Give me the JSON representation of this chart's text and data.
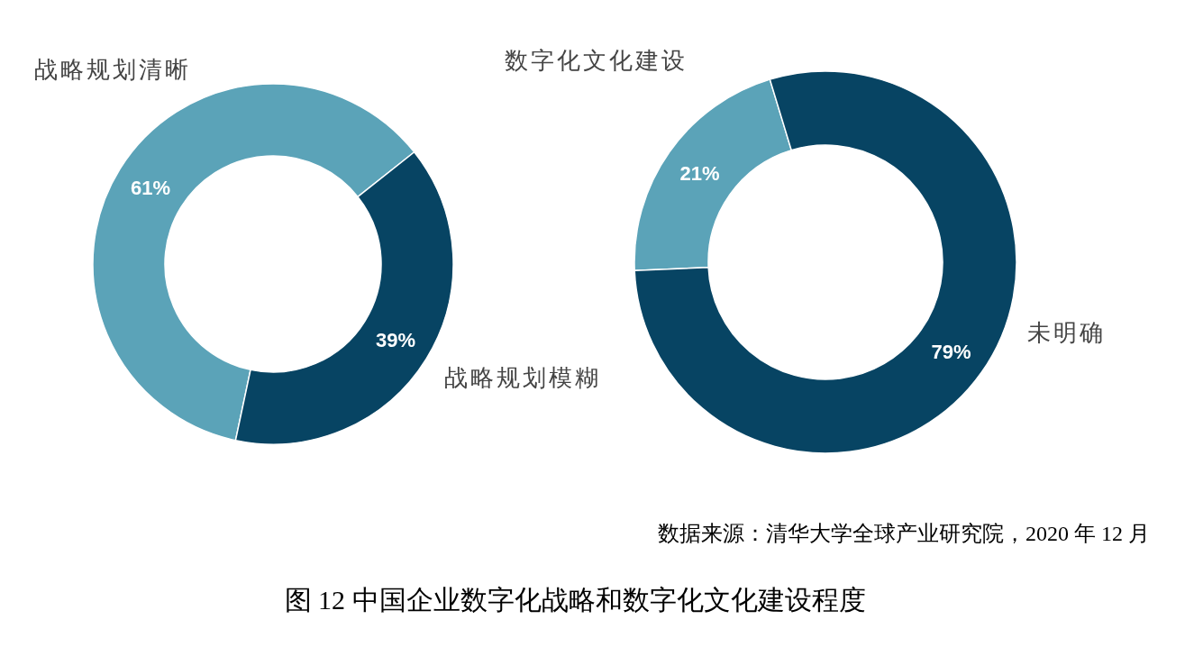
{
  "chart_data": [
    {
      "type": "donut",
      "categories": [
        "战略规划清晰",
        "战略规划模糊"
      ],
      "values": [
        61,
        39
      ],
      "colors": [
        "#5ba3b8",
        "#074463"
      ],
      "value_labels": [
        "61%",
        "39%"
      ]
    },
    {
      "type": "donut",
      "categories": [
        "数字化文化建设",
        "未明确"
      ],
      "values": [
        21,
        79
      ],
      "colors": [
        "#5ba3b8",
        "#074463"
      ],
      "value_labels": [
        "21%",
        "79%"
      ],
      "annotations": [
        "数据来源：清华大学全球产业研究院，2020 年 12 月",
        "图 12  中国企业数字化战略和数字化文化建设程度"
      ]
    }
  ]
}
